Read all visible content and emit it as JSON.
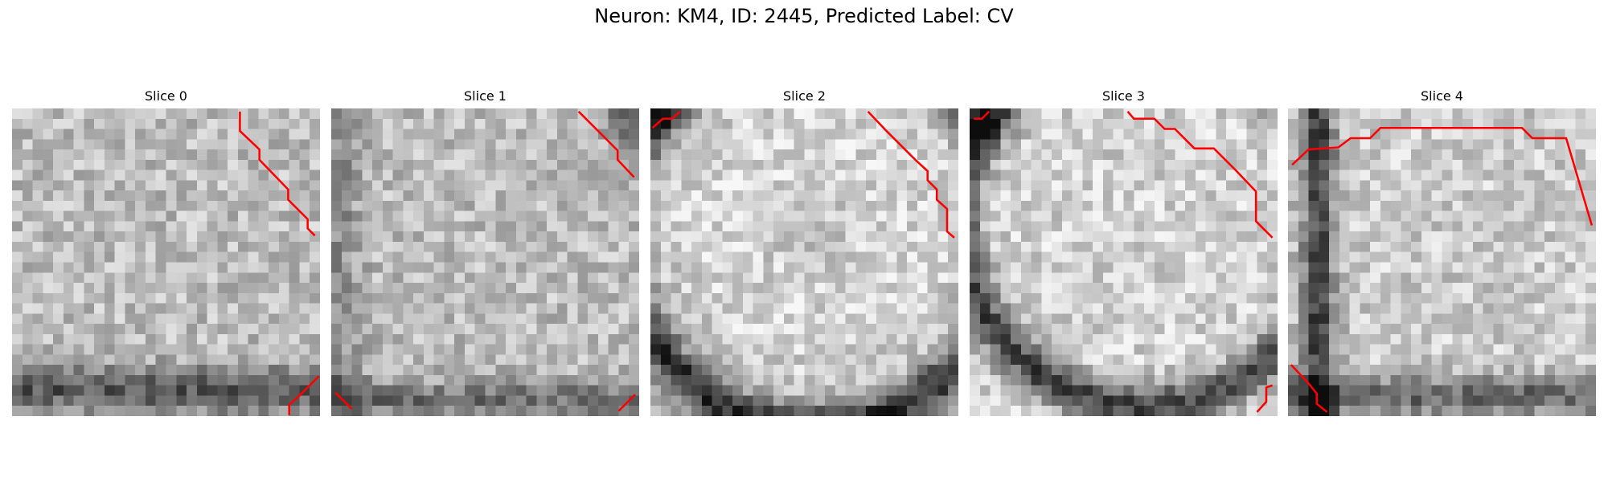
{
  "figure": {
    "title": "Neuron: KM4, ID: 2445, Predicted Label: CV",
    "grid_size": 30,
    "contour_color": "#ff0000"
  },
  "panels": [
    {
      "label": "Slice 0",
      "image": "grayscale microscopy patch, mostly light gray noise with a dark band along the bottom",
      "contours": [
        [
          [
            22.2,
            0.3
          ],
          [
            22.2,
            2.2
          ],
          [
            24.1,
            4.0
          ],
          [
            24.1,
            5.0
          ],
          [
            26.9,
            7.9
          ],
          [
            26.9,
            8.9
          ],
          [
            28.8,
            10.8
          ],
          [
            28.8,
            11.7
          ],
          [
            29.5,
            12.4
          ]
        ],
        [
          [
            27.0,
            29.9
          ],
          [
            27.0,
            28.9
          ],
          [
            28.0,
            28.0
          ],
          [
            29.9,
            26.1
          ]
        ]
      ]
    },
    {
      "label": "Slice 1",
      "image": "grayscale patch, light gray noise with darker corners and bottom edge",
      "contours": [
        [
          [
            24.1,
            0.3
          ],
          [
            26.0,
            2.2
          ],
          [
            27.9,
            4.1
          ],
          [
            27.9,
            5.0
          ],
          [
            29.5,
            6.7
          ]
        ],
        [
          [
            0.4,
            27.7
          ],
          [
            2.0,
            29.3
          ]
        ],
        [
          [
            28.0,
            29.5
          ],
          [
            29.6,
            27.9
          ]
        ]
      ]
    },
    {
      "label": "Slice 2",
      "image": "grayscale patch, bright rounded cell body with dark curved band at bottom-left",
      "contours": [
        [
          [
            0.2,
            1.9
          ],
          [
            1.2,
            1.0
          ],
          [
            2.1,
            1.0
          ],
          [
            2.9,
            0.3
          ]
        ],
        [
          [
            21.2,
            0.3
          ],
          [
            23.0,
            2.2
          ],
          [
            25.9,
            5.1
          ],
          [
            27.0,
            6.1
          ],
          [
            27.0,
            7.0
          ],
          [
            27.9,
            7.9
          ],
          [
            27.9,
            8.9
          ],
          [
            28.9,
            9.8
          ],
          [
            28.9,
            12.0
          ],
          [
            29.6,
            12.6
          ]
        ]
      ]
    },
    {
      "label": "Slice 3",
      "image": "grayscale patch, bright cell body bordered by dark curved edge on bottom-left",
      "contours": [
        [
          [
            0.4,
            1.0
          ],
          [
            1.2,
            1.0
          ],
          [
            1.9,
            0.3
          ]
        ],
        [
          [
            15.4,
            0.3
          ],
          [
            16.0,
            1.0
          ],
          [
            18.0,
            1.0
          ],
          [
            19.0,
            2.0
          ],
          [
            20.0,
            2.0
          ],
          [
            21.9,
            3.9
          ],
          [
            23.8,
            3.9
          ],
          [
            25.9,
            6.0
          ],
          [
            27.9,
            8.1
          ],
          [
            27.9,
            11.0
          ],
          [
            29.5,
            12.6
          ]
        ],
        [
          [
            28.0,
            29.6
          ],
          [
            28.9,
            28.6
          ],
          [
            28.9,
            27.2
          ],
          [
            29.5,
            27.0
          ]
        ]
      ]
    },
    {
      "label": "Slice 4",
      "image": "grayscale patch, bright cell body with dark vertical band on left and dark bottom edge",
      "contours": [
        [
          [
            0.4,
            5.5
          ],
          [
            2.0,
            4.0
          ],
          [
            4.9,
            3.8
          ],
          [
            6.1,
            2.9
          ],
          [
            8.0,
            2.9
          ],
          [
            9.0,
            1.9
          ],
          [
            22.8,
            1.9
          ],
          [
            23.8,
            2.9
          ],
          [
            27.1,
            2.9
          ],
          [
            29.6,
            11.4
          ]
        ],
        [
          [
            0.3,
            25.0
          ],
          [
            2.0,
            26.8
          ],
          [
            2.8,
            27.8
          ],
          [
            2.8,
            28.8
          ],
          [
            3.8,
            29.6
          ]
        ]
      ]
    }
  ]
}
